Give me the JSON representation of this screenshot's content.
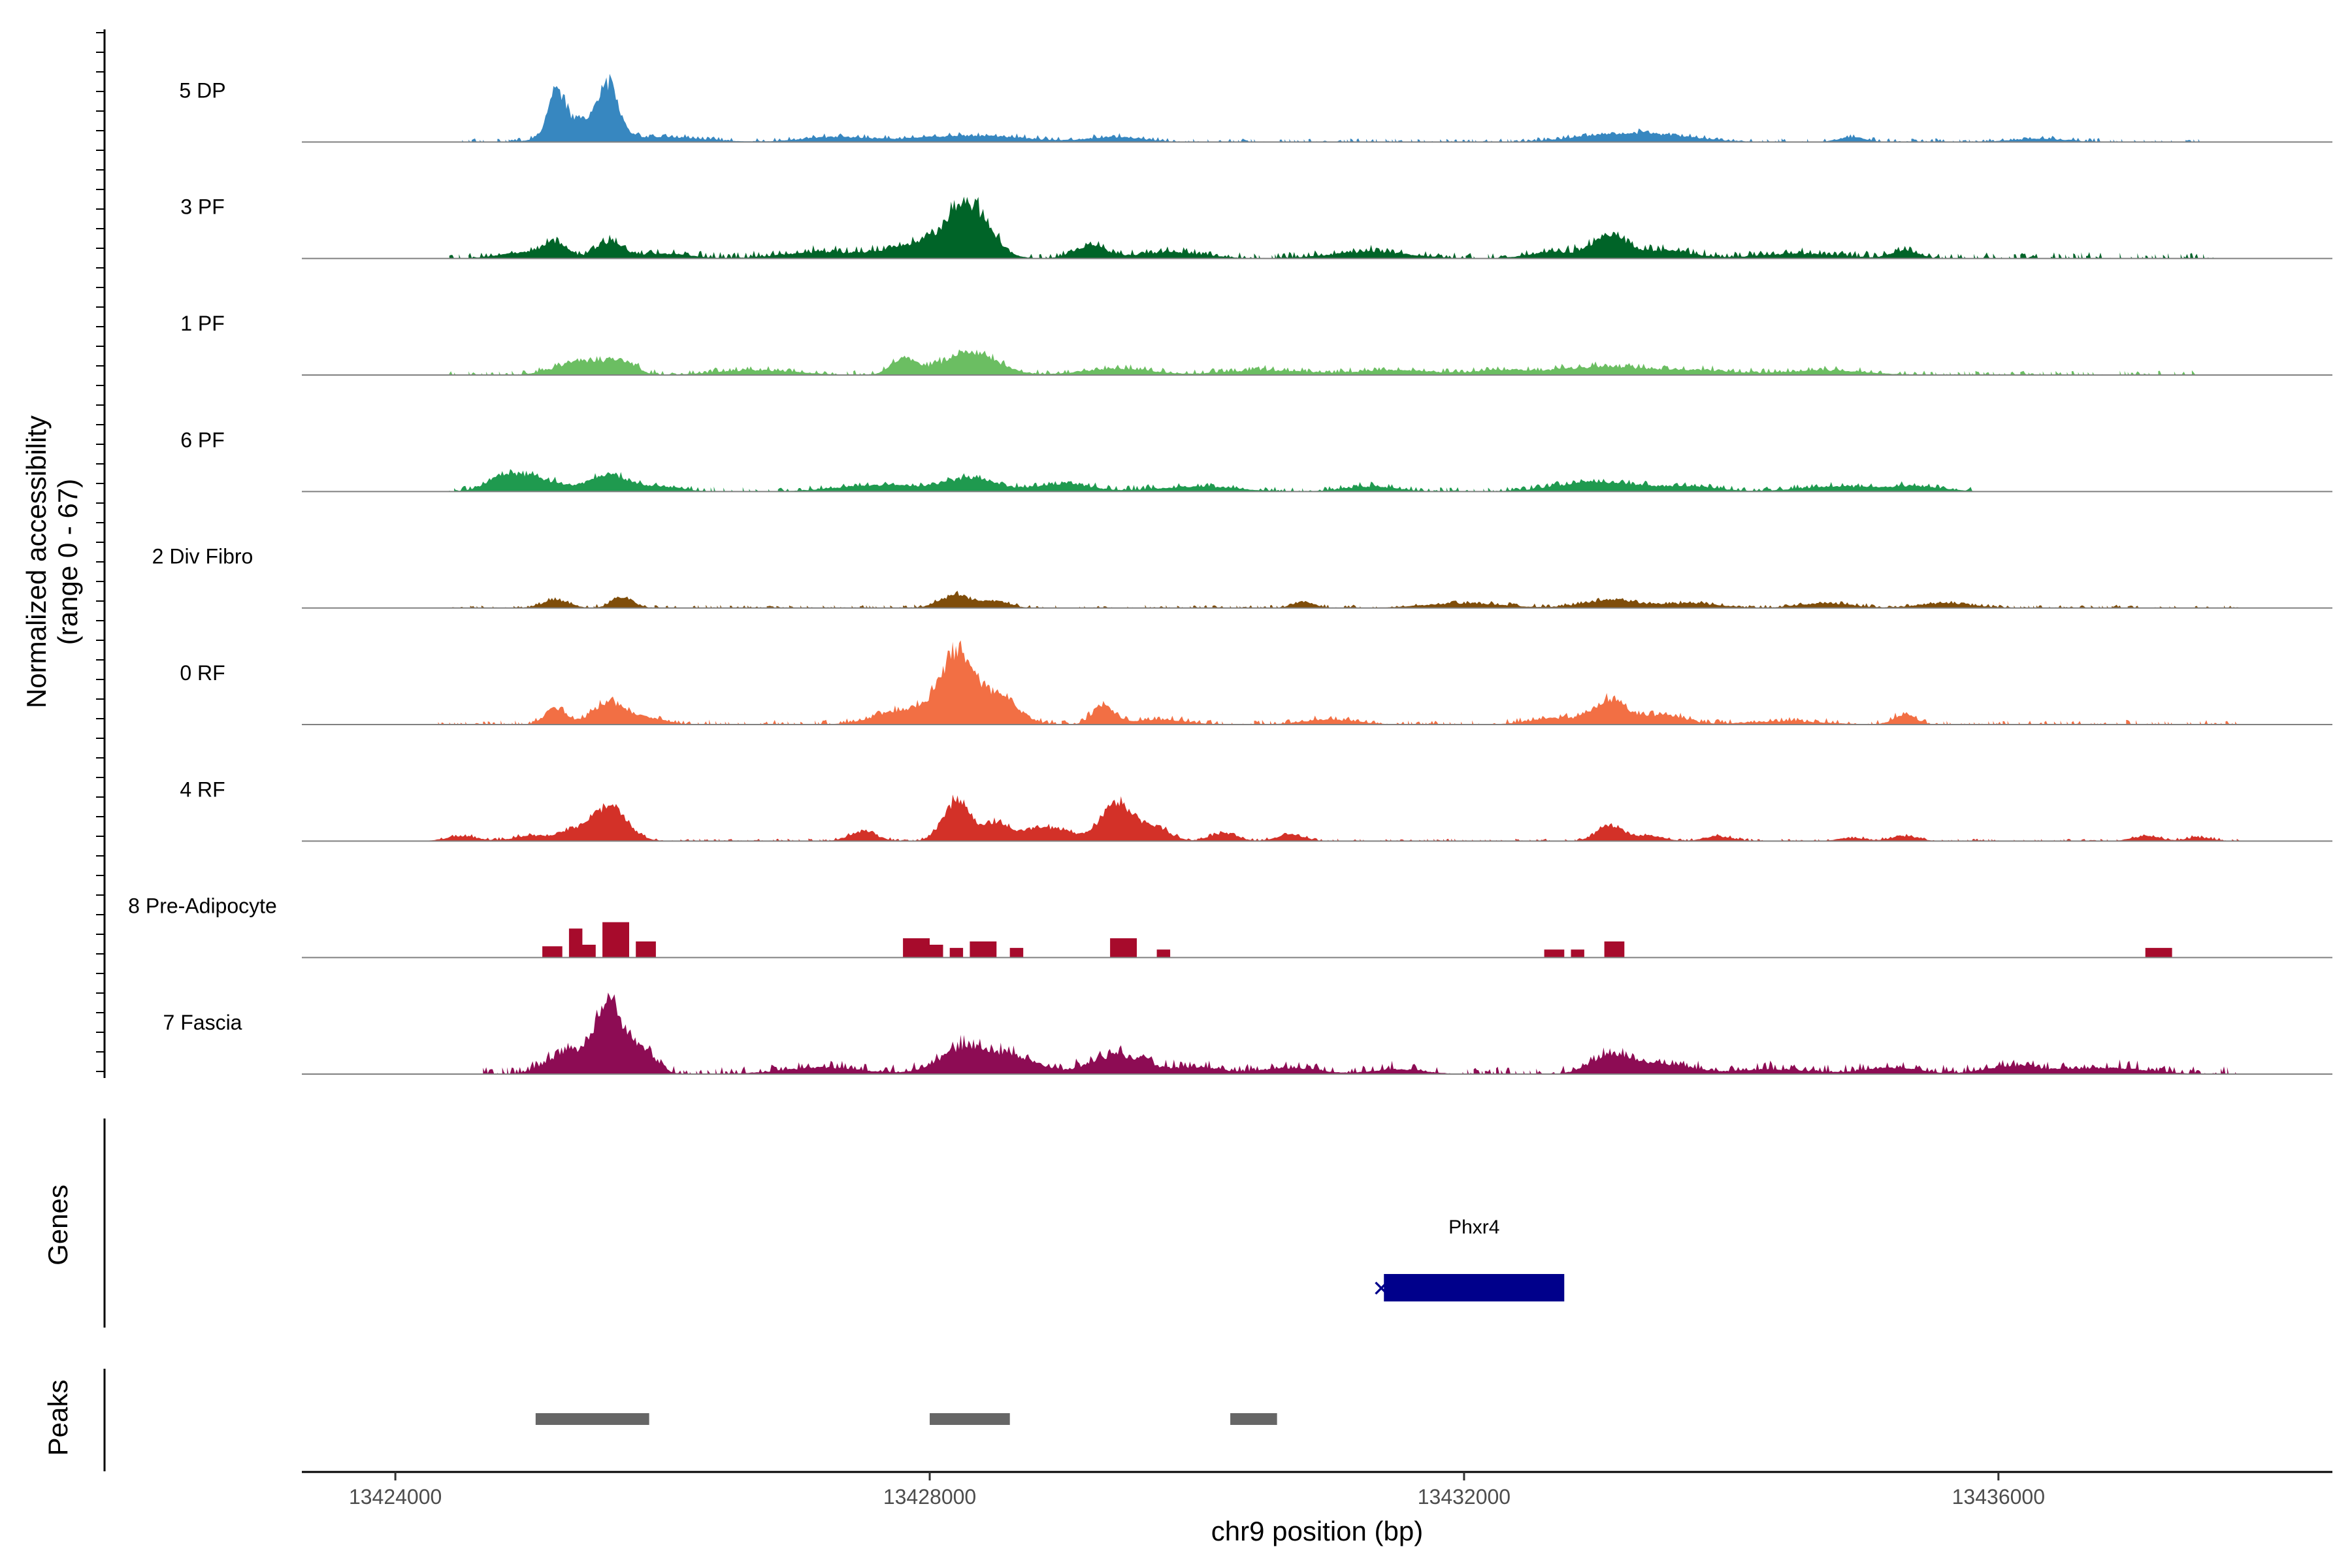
{
  "chart_data": {
    "type": "area",
    "title": "",
    "ylabel": [
      "Normalized accessibility",
      "(range 0 - 67)"
    ],
    "xlabel": "chr9 position (bp)",
    "xlim": [
      13423300,
      13438500
    ],
    "ylim": [
      0,
      67
    ],
    "x_ticks": [
      13424000,
      13428000,
      13432000,
      13436000
    ],
    "x_tick_labels": [
      "13424000",
      "13428000",
      "13432000",
      "13436000"
    ],
    "tracks": [
      {
        "name": "5 DP",
        "color": "#3787c0",
        "shape": "smooth",
        "peaks": [
          [
            13425200,
            25,
            60
          ],
          [
            13425600,
            28,
            70
          ],
          [
            13425400,
            14,
            180
          ],
          [
            13426000,
            3,
            300
          ],
          [
            13427300,
            3,
            250
          ],
          [
            13428300,
            4,
            400
          ],
          [
            13429400,
            3,
            200
          ],
          [
            13433100,
            4,
            300
          ],
          [
            13433500,
            3,
            300
          ],
          [
            13434900,
            3,
            100
          ],
          [
            13436300,
            2,
            200
          ]
        ],
        "bands": [
          [
            13424500,
            13437500,
            1.2
          ]
        ]
      },
      {
        "name": "3 PF",
        "color": "#006428",
        "shape": "smooth",
        "peaks": [
          [
            13425200,
            8,
            80
          ],
          [
            13425600,
            10,
            100
          ],
          [
            13425000,
            4,
            200
          ],
          [
            13426000,
            3,
            200
          ],
          [
            13427200,
            4,
            300
          ],
          [
            13428300,
            30,
            150
          ],
          [
            13428000,
            10,
            250
          ],
          [
            13429200,
            8,
            120
          ],
          [
            13429800,
            4,
            250
          ],
          [
            13431300,
            4,
            300
          ],
          [
            13433100,
            14,
            120
          ],
          [
            13433500,
            5,
            200
          ],
          [
            13432700,
            4,
            200
          ],
          [
            13435300,
            5,
            100
          ],
          [
            13434500,
            3,
            300
          ]
        ],
        "bands": [
          [
            13424400,
            13437700,
            2
          ]
        ]
      },
      {
        "name": "1 PF",
        "color": "#6bbe62",
        "shape": "smooth",
        "peaks": [
          [
            13425400,
            9,
            180
          ],
          [
            13425700,
            7,
            100
          ],
          [
            13427800,
            10,
            90
          ],
          [
            13428300,
            14,
            200
          ],
          [
            13426700,
            3,
            300
          ],
          [
            13429400,
            4,
            250
          ],
          [
            13430500,
            3,
            300
          ],
          [
            13431500,
            3,
            300
          ],
          [
            13432300,
            3,
            200
          ],
          [
            13433000,
            5,
            300
          ],
          [
            13433700,
            3,
            300
          ],
          [
            13434700,
            3,
            300
          ]
        ],
        "bands": [
          [
            13424400,
            13437500,
            1.5
          ]
        ]
      },
      {
        "name": "6 PF",
        "color": "#1f9a4f",
        "shape": "smooth",
        "peaks": [
          [
            13425000,
            9,
            200
          ],
          [
            13425600,
            10,
            150
          ],
          [
            13424800,
            5,
            120
          ],
          [
            13426000,
            3,
            150
          ],
          [
            13427600,
            4,
            300
          ],
          [
            13428300,
            8,
            200
          ],
          [
            13429000,
            5,
            200
          ],
          [
            13430000,
            3,
            300
          ],
          [
            13431300,
            3,
            200
          ],
          [
            13433000,
            6,
            300
          ],
          [
            13433700,
            3,
            200
          ],
          [
            13434800,
            3,
            300
          ],
          [
            13435400,
            3,
            200
          ]
        ],
        "bands": [
          [
            13424400,
            13435800,
            1.5
          ]
        ]
      },
      {
        "name": "2 Div Fibro",
        "color": "#7f4d0a",
        "shape": "smooth",
        "peaks": [
          [
            13425200,
            5,
            100
          ],
          [
            13425700,
            7,
            80
          ],
          [
            13428200,
            8,
            120
          ],
          [
            13428500,
            4,
            100
          ],
          [
            13430800,
            4,
            80
          ],
          [
            13432000,
            3,
            300
          ],
          [
            13433100,
            5,
            200
          ],
          [
            13433700,
            3,
            200
          ],
          [
            13434700,
            3,
            200
          ],
          [
            13435600,
            3,
            200
          ]
        ],
        "bands": [
          [
            13424400,
            13437800,
            1
          ]
        ]
      },
      {
        "name": "0 RF",
        "color": "#f26f44",
        "shape": "smooth",
        "peaks": [
          [
            13425200,
            10,
            80
          ],
          [
            13425600,
            14,
            120
          ],
          [
            13425900,
            4,
            120
          ],
          [
            13427700,
            3,
            200
          ],
          [
            13428200,
            40,
            120
          ],
          [
            13428500,
            18,
            150
          ],
          [
            13427900,
            8,
            200
          ],
          [
            13429300,
            12,
            80
          ],
          [
            13429700,
            3,
            200
          ],
          [
            13431000,
            3,
            200
          ],
          [
            13433100,
            15,
            120
          ],
          [
            13433500,
            6,
            150
          ],
          [
            13432700,
            4,
            200
          ],
          [
            13435300,
            6,
            80
          ],
          [
            13434400,
            2,
            300
          ]
        ],
        "bands": [
          [
            13424300,
            13437800,
            1.5
          ]
        ]
      },
      {
        "name": "4 RF",
        "color": "#d33128",
        "shape": "smooth",
        "peaks": [
          [
            13425600,
            22,
            130
          ],
          [
            13425300,
            6,
            100
          ],
          [
            13424500,
            3,
            120
          ],
          [
            13425000,
            3,
            120
          ],
          [
            13427500,
            6,
            100
          ],
          [
            13428200,
            25,
            100
          ],
          [
            13428500,
            12,
            100
          ],
          [
            13428800,
            8,
            100
          ],
          [
            13429000,
            6,
            100
          ],
          [
            13429400,
            24,
            120
          ],
          [
            13429700,
            8,
            100
          ],
          [
            13430200,
            5,
            100
          ],
          [
            13430700,
            4,
            100
          ],
          [
            13433100,
            10,
            100
          ],
          [
            13433400,
            3,
            100
          ],
          [
            13433900,
            3,
            100
          ],
          [
            13435300,
            3,
            100
          ],
          [
            13434900,
            2,
            100
          ],
          [
            13437100,
            3,
            100
          ],
          [
            13437500,
            2,
            100
          ]
        ],
        "bands": [
          [
            13424300,
            13437800,
            0.8
          ]
        ]
      },
      {
        "name": "8 Pre-Adipocyte",
        "color": "#a70b2c",
        "shape": "step",
        "segments": [
          [
            13425100,
            13425250,
            7
          ],
          [
            13425300,
            13425400,
            18
          ],
          [
            13425400,
            13425500,
            8
          ],
          [
            13425550,
            13425750,
            22
          ],
          [
            13425800,
            13425950,
            10
          ],
          [
            13427800,
            13428000,
            12
          ],
          [
            13428000,
            13428100,
            8
          ],
          [
            13428150,
            13428250,
            6
          ],
          [
            13428300,
            13428500,
            10
          ],
          [
            13428600,
            13428700,
            6
          ],
          [
            13429350,
            13429550,
            12
          ],
          [
            13429700,
            13429800,
            5
          ],
          [
            13432600,
            13432750,
            5
          ],
          [
            13432800,
            13432900,
            5
          ],
          [
            13433050,
            13433200,
            10
          ],
          [
            13437100,
            13437300,
            6
          ]
        ]
      },
      {
        "name": "7 Fascia",
        "color": "#8d0c54",
        "shape": "smooth",
        "peaks": [
          [
            13425600,
            45,
            100
          ],
          [
            13425300,
            14,
            150
          ],
          [
            13425850,
            15,
            100
          ],
          [
            13427200,
            4,
            300
          ],
          [
            13428300,
            18,
            200
          ],
          [
            13428700,
            8,
            150
          ],
          [
            13429400,
            12,
            200
          ],
          [
            13430000,
            4,
            200
          ],
          [
            13430700,
            4,
            200
          ],
          [
            13431500,
            3,
            200
          ],
          [
            13433100,
            12,
            150
          ],
          [
            13433500,
            6,
            200
          ],
          [
            13434300,
            3,
            300
          ],
          [
            13435200,
            4,
            200
          ],
          [
            13436100,
            5,
            200
          ],
          [
            13436800,
            4,
            300
          ]
        ],
        "bands": [
          [
            13424600,
            13437800,
            2.5
          ]
        ]
      }
    ],
    "gene_track": {
      "label": "Genes",
      "genes": [
        {
          "name": "Phxr4",
          "start": 13431400,
          "end": 13432750,
          "color": "#00008b",
          "strand_marker": "✕"
        }
      ]
    },
    "peaks_track": {
      "label": "Peaks",
      "color": "#666666",
      "regions": [
        [
          13425050,
          13425900
        ],
        [
          13428000,
          13428600
        ],
        [
          13430250,
          13430600
        ]
      ]
    }
  }
}
